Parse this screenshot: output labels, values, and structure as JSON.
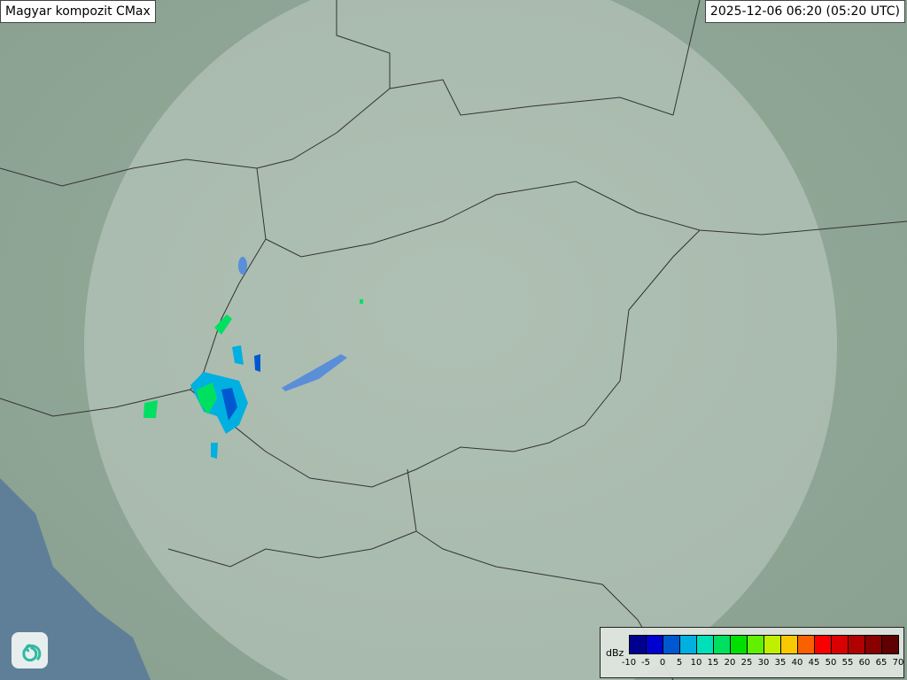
{
  "header": {
    "title": "Magyar kompozit  CMax",
    "timestamp": "2025-12-06 06:20 (05:20 UTC)"
  },
  "legend": {
    "unit": "dBz",
    "ticks": [
      "-10",
      "-5",
      "0",
      "5",
      "10",
      "15",
      "20",
      "25",
      "30",
      "35",
      "40",
      "45",
      "50",
      "55",
      "60",
      "65",
      "70"
    ],
    "colors": [
      "#000090",
      "#0000d0",
      "#0058d0",
      "#00b0e0",
      "#00e0b8",
      "#00e060",
      "#00e000",
      "#60f000",
      "#c0f000",
      "#f8c800",
      "#f86000",
      "#f80000",
      "#d80000",
      "#b00000",
      "#880000",
      "#600000"
    ]
  },
  "logo": {
    "icon": "swirl-logo-icon"
  },
  "colors": {
    "land": "#8fa596",
    "coverage": "#dde6df",
    "sea": "#5f7f99",
    "border": "#333333",
    "water": "#5a8ed8"
  }
}
